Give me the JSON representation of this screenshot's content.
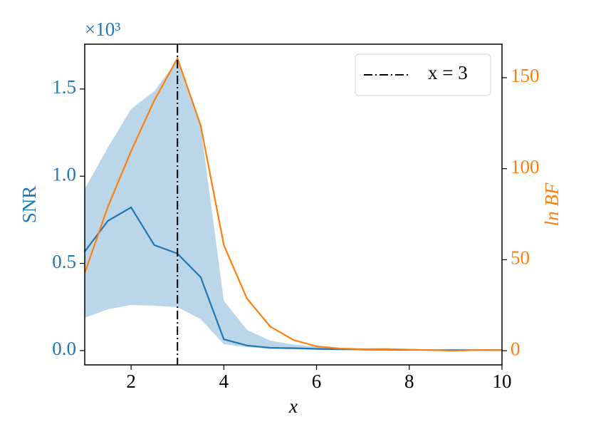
{
  "chart_data": {
    "type": "line",
    "x": [
      1,
      1.5,
      2,
      2.5,
      3,
      3.5,
      4,
      4.5,
      5,
      5.5,
      6,
      6.5,
      7,
      7.5,
      8,
      8.5,
      9,
      9.5,
      10
    ],
    "xlim": [
      1,
      10
    ],
    "xticks": [
      2,
      4,
      6,
      8,
      10
    ],
    "ylim": [
      -0.082,
      1.757
    ],
    "yticks": [
      {
        "value": 0,
        "label": "0.0"
      },
      0.5,
      {
        "value": 1,
        "label": "1.0"
      },
      1.5
    ],
    "y2lim": [
      -7.8,
      168.4
    ],
    "y2ticks": [
      0,
      50,
      100,
      150
    ],
    "xlabel": "x",
    "ylabel": "SNR",
    "y2label": "ln BF",
    "y_offset_label": "×10³",
    "legend": "upper right",
    "vline": {
      "x": 3,
      "label": "x = 3",
      "color": "#000000"
    },
    "series": [
      {
        "color": "#1f77b4",
        "values": [
          0.568,
          0.744,
          0.821,
          0.605,
          0.556,
          0.421,
          0.065,
          0.029,
          0.016,
          0.014,
          0.01,
          0.008,
          0.006,
          0.005,
          0.004,
          0.003,
          0.003,
          0.003,
          0.003
        ],
        "upper": [
          0.928,
          1.165,
          1.385,
          1.488,
          1.667,
          1.287,
          0.286,
          0.119,
          0.057,
          0.035,
          0.022,
          0.015,
          0.012,
          0.01,
          0.008,
          0.007,
          0.006,
          0.006,
          0.006
        ],
        "lower": [
          0.188,
          0.237,
          0.262,
          0.257,
          0.249,
          0.18,
          0.037,
          0.02,
          0.01,
          0.007,
          0.005,
          0.003,
          0.003,
          0.003,
          0.003,
          0.003,
          0.003,
          0.003,
          0.003
        ]
      },
      {
        "color": "#ff7f0e",
        "axis": "y2",
        "values": [
          42.7,
          79.1,
          109.7,
          137.5,
          160.6,
          123.8,
          58.0,
          28.6,
          13.3,
          5.9,
          2.4,
          1.2,
          0.8,
          0.9,
          0.6,
          0.3,
          0.0,
          0.4,
          0.2
        ]
      }
    ]
  }
}
